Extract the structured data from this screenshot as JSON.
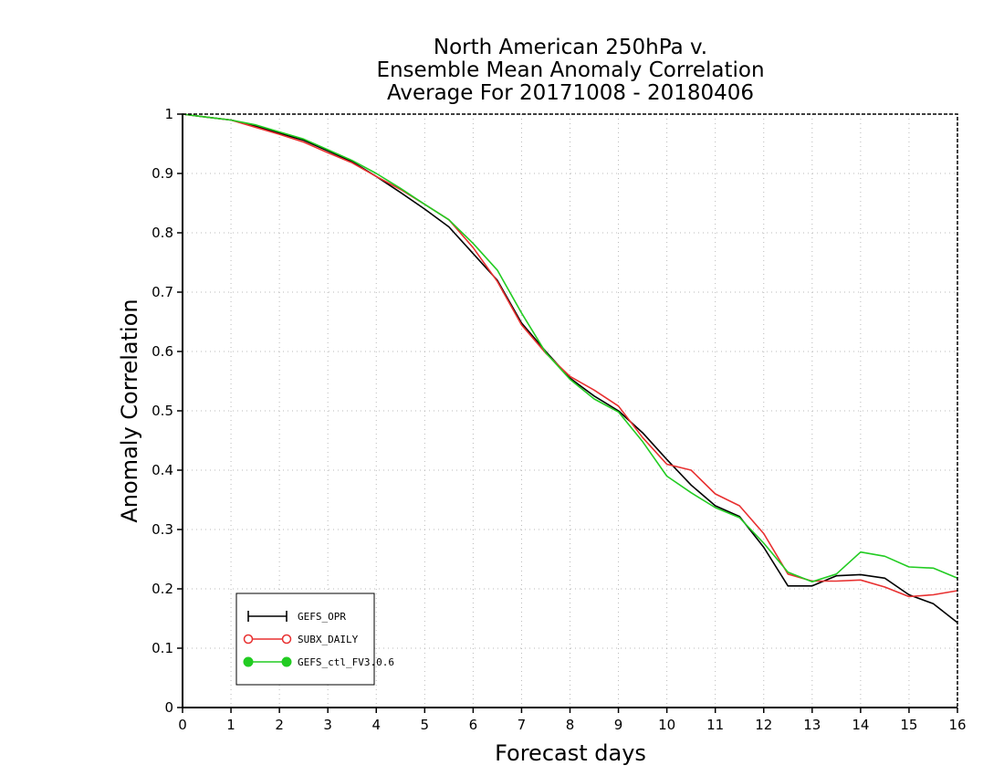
{
  "chart_data": {
    "type": "line",
    "title_lines": [
      "North American 250hPa v.",
      "Ensemble Mean Anomaly Correlation",
      "Average For 20171008 - 20180406"
    ],
    "xlabel": "Forecast days",
    "ylabel": "Anomaly Correlation",
    "xlim": [
      0,
      16
    ],
    "ylim": [
      0,
      1
    ],
    "x_ticks": [
      0,
      1,
      2,
      3,
      4,
      5,
      6,
      7,
      8,
      9,
      10,
      11,
      12,
      13,
      14,
      15,
      16
    ],
    "y_ticks": [
      0,
      0.1,
      0.2,
      0.3,
      0.4,
      0.5,
      0.6,
      0.7,
      0.8,
      0.9,
      1
    ],
    "y_tick_labels": [
      "0",
      "0.1",
      "0.2",
      "0.3",
      "0.4",
      "0.5",
      "0.6",
      "0.7",
      "0.8",
      "0.9",
      "1"
    ],
    "grid": true,
    "legend_position": "bottom-left",
    "x": [
      0,
      0.5,
      1,
      1.5,
      2,
      2.5,
      3,
      3.5,
      4,
      4.5,
      5,
      5.5,
      6,
      6.5,
      7,
      7.5,
      8,
      8.5,
      9,
      9.5,
      10,
      10.5,
      11,
      11.5,
      12,
      12.5,
      13,
      13.5,
      14,
      14.5,
      15,
      15.5,
      16
    ],
    "series": [
      {
        "name": "GEFS_OPR",
        "color": "#000000",
        "marker": "plus",
        "values": [
          1.0,
          0.995,
          0.99,
          0.98,
          0.968,
          0.956,
          0.938,
          0.92,
          0.895,
          0.868,
          0.84,
          0.81,
          0.765,
          0.72,
          0.648,
          0.6,
          0.555,
          0.525,
          0.5,
          0.463,
          0.418,
          0.375,
          0.34,
          0.322,
          0.27,
          0.205,
          0.205,
          0.222,
          0.224,
          0.218,
          0.19,
          0.175,
          0.143
        ]
      },
      {
        "name": "SUBX_DAILY",
        "color": "#e83030",
        "marker": "open-circle",
        "values": [
          1.0,
          0.995,
          0.99,
          0.978,
          0.966,
          0.953,
          0.935,
          0.918,
          0.895,
          0.873,
          0.848,
          0.822,
          0.775,
          0.718,
          0.645,
          0.597,
          0.558,
          0.535,
          0.508,
          0.455,
          0.41,
          0.4,
          0.36,
          0.34,
          0.293,
          0.225,
          0.213,
          0.213,
          0.215,
          0.203,
          0.187,
          0.19,
          0.197
        ]
      },
      {
        "name": "GEFS_ctl_FV3.0.6",
        "color": "#22cc22",
        "marker": "filled-circle",
        "values": [
          1.0,
          0.995,
          0.99,
          0.982,
          0.97,
          0.958,
          0.94,
          0.922,
          0.9,
          0.875,
          0.848,
          0.822,
          0.782,
          0.737,
          0.665,
          0.598,
          0.553,
          0.52,
          0.498,
          0.448,
          0.39,
          0.362,
          0.337,
          0.32,
          0.277,
          0.228,
          0.212,
          0.225,
          0.262,
          0.255,
          0.237,
          0.235,
          0.218
        ]
      }
    ]
  }
}
